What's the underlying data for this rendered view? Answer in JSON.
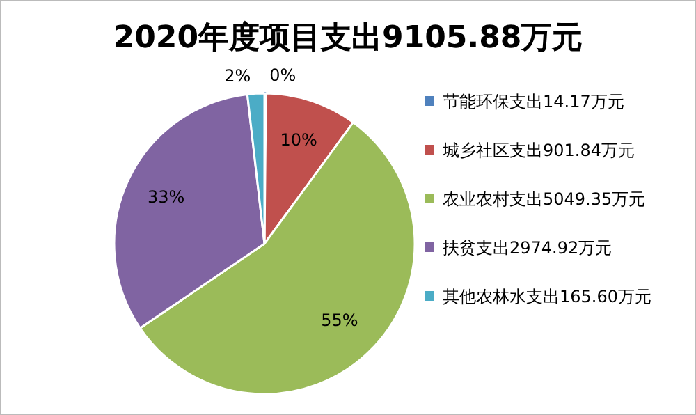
{
  "chart_data": {
    "type": "pie",
    "title": "2020年度项目支出9105.88万元",
    "categories": [
      "节能环保支出14.17万元",
      "城乡社区支出901.84万元",
      "农业农村支出5049.35万元",
      "扶贫支出2974.92万元",
      "其他农林水支出165.60万元"
    ],
    "values": [
      0.16,
      9.9,
      55.45,
      32.67,
      1.82
    ],
    "colors": [
      "#4f81bd",
      "#c0504d",
      "#9bbb59",
      "#8064a2",
      "#4bacc6"
    ],
    "value_labels": [
      "0%",
      "10%",
      "55%",
      "33%",
      "2%"
    ],
    "legend": "right"
  }
}
